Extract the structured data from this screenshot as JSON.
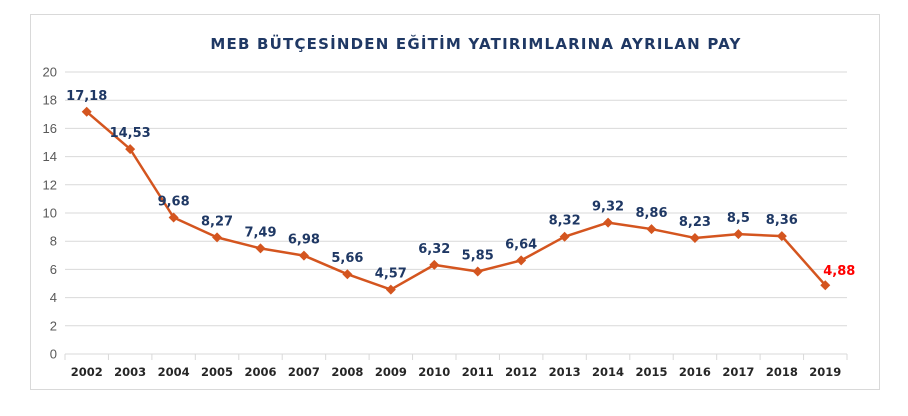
{
  "chart_data": {
    "type": "line",
    "title": "MEB BÜTÇESİNDEN EĞİTİM YATIRIMLARINA AYRILAN PAY",
    "xlabel": "",
    "ylabel": "",
    "categories": [
      "2002",
      "2003",
      "2004",
      "2005",
      "2006",
      "2007",
      "2008",
      "2009",
      "2010",
      "2011",
      "2012",
      "2013",
      "2014",
      "2015",
      "2016",
      "2017",
      "2018",
      "2019"
    ],
    "series": [
      {
        "values": [
          17.18,
          14.53,
          9.68,
          8.27,
          7.49,
          6.98,
          5.66,
          4.57,
          6.32,
          5.85,
          6.64,
          8.32,
          9.32,
          8.86,
          8.23,
          8.5,
          8.36,
          4.88
        ],
        "labels": [
          "17,18",
          "14,53",
          "9,68",
          "8,27",
          "7,49",
          "6,98",
          "5,66",
          "4,57",
          "6,32",
          "5,85",
          "6,64",
          "8,32",
          "9,32",
          "8,86",
          "8,23",
          "8,5",
          "8,36",
          "4,88"
        ],
        "color": "#d4551f"
      }
    ],
    "ylim": [
      0,
      20
    ],
    "yticks": [
      0,
      2,
      4,
      6,
      8,
      10,
      12,
      14,
      16,
      18,
      20
    ],
    "grid": true,
    "legend": "none",
    "label_color": "#1f3864",
    "highlight_label_color": "#ff0000"
  }
}
